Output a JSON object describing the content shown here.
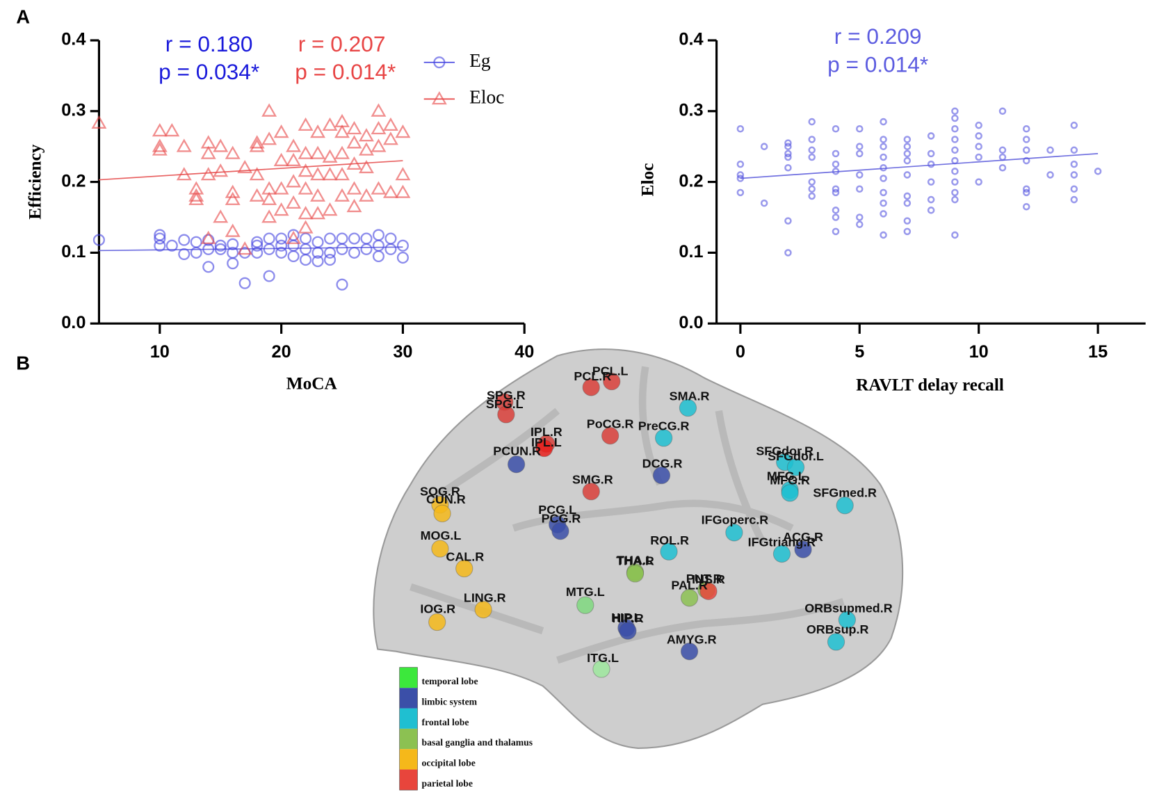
{
  "panels": [
    "A",
    "B"
  ],
  "chart_data": [
    {
      "type": "scatter",
      "xlabel": "MoCA",
      "ylabel": "Efficiency",
      "xlim": [
        5,
        40
      ],
      "xticks": [
        10,
        20,
        30,
        40
      ],
      "ylim": [
        0,
        0.4
      ],
      "yticks": [
        {
          "value": 0,
          "label": "0.0"
        },
        0.1,
        0.2,
        0.3,
        0.4
      ],
      "annotations": [
        {
          "text": "r = 0.180",
          "color": "#1a1adb"
        },
        {
          "text": "p = 0.034*",
          "color": "#1a1adb"
        },
        {
          "text": "r = 0.207",
          "color": "#e84545"
        },
        {
          "text": "p = 0.014*",
          "color": "#e84545"
        }
      ],
      "series": [
        {
          "name": "Eg",
          "color": "#4040e0",
          "marker": "circle",
          "x": [
            5,
            10,
            10,
            10,
            11,
            12,
            12,
            13,
            13,
            14,
            14,
            14,
            15,
            15,
            16,
            16,
            16,
            17,
            17,
            18,
            18,
            18,
            19,
            19,
            19,
            20,
            20,
            20,
            21,
            21,
            21,
            22,
            22,
            22,
            23,
            23,
            23,
            24,
            24,
            24,
            25,
            25,
            25,
            26,
            26,
            27,
            27,
            28,
            28,
            28,
            29,
            29,
            30,
            30
          ],
          "values": [
            0.118,
            0.125,
            0.12,
            0.11,
            0.11,
            0.118,
            0.098,
            0.115,
            0.1,
            0.118,
            0.105,
            0.08,
            0.11,
            0.105,
            0.112,
            0.1,
            0.085,
            0.1,
            0.057,
            0.115,
            0.11,
            0.1,
            0.12,
            0.105,
            0.067,
            0.12,
            0.11,
            0.1,
            0.125,
            0.11,
            0.095,
            0.12,
            0.105,
            0.09,
            0.115,
            0.1,
            0.088,
            0.12,
            0.1,
            0.09,
            0.12,
            0.105,
            0.055,
            0.12,
            0.1,
            0.12,
            0.105,
            0.125,
            0.11,
            0.095,
            0.12,
            0.105,
            0.11,
            0.093
          ]
        },
        {
          "name": "Eloc",
          "color": "#e84545",
          "marker": "triangle",
          "x": [
            5,
            10,
            10,
            10,
            11,
            12,
            12,
            13,
            13,
            13,
            14,
            14,
            14,
            14,
            15,
            15,
            15,
            16,
            16,
            16,
            16,
            17,
            17,
            18,
            18,
            18,
            18,
            19,
            19,
            19,
            19,
            19,
            20,
            20,
            20,
            20,
            21,
            21,
            21,
            21,
            21,
            22,
            22,
            22,
            22,
            22,
            22,
            23,
            23,
            23,
            23,
            23,
            24,
            24,
            24,
            24,
            25,
            25,
            25,
            25,
            25,
            26,
            26,
            26,
            26,
            26,
            27,
            27,
            27,
            27,
            28,
            28,
            28,
            28,
            29,
            29,
            29,
            30,
            30,
            30
          ],
          "values": [
            0.283,
            0.272,
            0.25,
            0.245,
            0.272,
            0.25,
            0.21,
            0.19,
            0.18,
            0.175,
            0.255,
            0.24,
            0.21,
            0.12,
            0.25,
            0.215,
            0.15,
            0.24,
            0.185,
            0.175,
            0.13,
            0.22,
            0.105,
            0.255,
            0.25,
            0.21,
            0.18,
            0.3,
            0.26,
            0.19,
            0.175,
            0.15,
            0.27,
            0.23,
            0.19,
            0.16,
            0.25,
            0.23,
            0.2,
            0.17,
            0.12,
            0.28,
            0.24,
            0.215,
            0.19,
            0.155,
            0.135,
            0.27,
            0.24,
            0.21,
            0.18,
            0.155,
            0.28,
            0.235,
            0.21,
            0.16,
            0.285,
            0.27,
            0.24,
            0.21,
            0.18,
            0.275,
            0.255,
            0.225,
            0.19,
            0.165,
            0.265,
            0.245,
            0.22,
            0.18,
            0.3,
            0.275,
            0.25,
            0.19,
            0.28,
            0.26,
            0.185,
            0.27,
            0.21,
            0.185
          ]
        }
      ],
      "trendlines": [
        {
          "color": "#7070e0",
          "x": [
            5,
            30
          ],
          "values": [
            0.103,
            0.108
          ]
        },
        {
          "color": "#e86060",
          "x": [
            5,
            30
          ],
          "values": [
            0.203,
            0.23
          ]
        }
      ]
    },
    {
      "type": "scatter",
      "xlabel": "RAVLT delay recall",
      "ylabel": "Eloc",
      "xlim": [
        -1,
        17
      ],
      "xticks": [
        0,
        5,
        10,
        15
      ],
      "ylim": [
        0,
        0.4
      ],
      "yticks": [
        {
          "value": 0,
          "label": "0.0"
        },
        0.1,
        0.2,
        0.3,
        0.4
      ],
      "annotations": [
        {
          "text": "r = 0.209",
          "color": "#5c5ce0"
        },
        {
          "text": "p = 0.014*",
          "color": "#5c5ce0"
        }
      ],
      "series": [
        {
          "name": "Eloc",
          "color": "#5555e0",
          "marker": "circle",
          "x": [
            0,
            0,
            0,
            0,
            0,
            1,
            1,
            2,
            2,
            2,
            2,
            2,
            2,
            2,
            3,
            3,
            3,
            3,
            3,
            3,
            3,
            4,
            4,
            4,
            4,
            4,
            4,
            4,
            4,
            4,
            5,
            5,
            5,
            5,
            5,
            5,
            5,
            6,
            6,
            6,
            6,
            6,
            6,
            6,
            6,
            6,
            6,
            7,
            7,
            7,
            7,
            7,
            7,
            7,
            7,
            7,
            8,
            8,
            8,
            8,
            8,
            8,
            9,
            9,
            9,
            9,
            9,
            9,
            9,
            9,
            9,
            9,
            9,
            10,
            10,
            10,
            10,
            10,
            11,
            11,
            11,
            11,
            12,
            12,
            12,
            12,
            12,
            12,
            12,
            13,
            13,
            14,
            14,
            14,
            14,
            14,
            14,
            15
          ],
          "values": [
            0.275,
            0.225,
            0.21,
            0.205,
            0.185,
            0.25,
            0.17,
            0.255,
            0.25,
            0.24,
            0.235,
            0.22,
            0.145,
            0.1,
            0.285,
            0.26,
            0.245,
            0.235,
            0.2,
            0.19,
            0.18,
            0.275,
            0.24,
            0.225,
            0.215,
            0.19,
            0.185,
            0.16,
            0.15,
            0.13,
            0.275,
            0.25,
            0.24,
            0.21,
            0.19,
            0.15,
            0.14,
            0.285,
            0.26,
            0.25,
            0.235,
            0.22,
            0.205,
            0.185,
            0.17,
            0.155,
            0.125,
            0.26,
            0.25,
            0.24,
            0.23,
            0.21,
            0.18,
            0.17,
            0.145,
            0.13,
            0.265,
            0.24,
            0.225,
            0.2,
            0.175,
            0.16,
            0.3,
            0.29,
            0.275,
            0.26,
            0.245,
            0.23,
            0.215,
            0.2,
            0.185,
            0.175,
            0.125,
            0.28,
            0.265,
            0.25,
            0.235,
            0.2,
            0.3,
            0.245,
            0.235,
            0.22,
            0.275,
            0.26,
            0.245,
            0.23,
            0.19,
            0.185,
            0.165,
            0.245,
            0.21,
            0.28,
            0.245,
            0.225,
            0.21,
            0.19,
            0.175,
            0.215
          ]
        }
      ],
      "trendlines": [
        {
          "color": "#7070e0",
          "x": [
            0,
            15
          ],
          "values": [
            0.205,
            0.24
          ]
        }
      ]
    }
  ],
  "brain": {
    "legend": [
      {
        "label": "temporal lobe",
        "color": "#3ce83c"
      },
      {
        "label": "limbic system",
        "color": "#3b4fa8"
      },
      {
        "label": "frontal lobe",
        "color": "#1fbfd1"
      },
      {
        "label": "basal ganglia and thalamus",
        "color": "#8cc152"
      },
      {
        "label": "occipital lobe",
        "color": "#f5b81a"
      },
      {
        "label": "parietal lobe",
        "color": "#e8453c"
      }
    ],
    "nodes": [
      {
        "label": "SPG.R",
        "color": "#d9403a"
      },
      {
        "label": "SPG.L",
        "color": "#d9403a"
      },
      {
        "label": "PCL.R",
        "color": "#d9403a"
      },
      {
        "label": "PCL.L",
        "color": "#d9403a"
      },
      {
        "label": "SMA.R",
        "color": "#1fbfd1"
      },
      {
        "label": "PoCG.R",
        "color": "#d9403a"
      },
      {
        "label": "PreCG.R",
        "color": "#1fbfd1"
      },
      {
        "label": "IPL.R",
        "color": "#d9403a"
      },
      {
        "label": "IPL.L",
        "color": "#e8201c"
      },
      {
        "label": "PCUN.R",
        "color": "#3b4fa8"
      },
      {
        "label": "DCG.R",
        "color": "#3b4fa8"
      },
      {
        "label": "SFGdor.R",
        "color": "#1fbfd1"
      },
      {
        "label": "SFGdor.L",
        "color": "#1fbfd1"
      },
      {
        "label": "MFG.L",
        "color": "#1fbfd1"
      },
      {
        "label": "MFG.R",
        "color": "#1fbfd1"
      },
      {
        "label": "SFGmed.R",
        "color": "#1fbfd1"
      },
      {
        "label": "SMG.R",
        "color": "#d9403a"
      },
      {
        "label": "SOG.R",
        "color": "#f5b81a"
      },
      {
        "label": "CUN.R",
        "color": "#f5b81a"
      },
      {
        "label": "PCG.L",
        "color": "#3b4fa8"
      },
      {
        "label": "PCG.R",
        "color": "#3b4fa8"
      },
      {
        "label": "IFGoperc.R",
        "color": "#1fbfd1"
      },
      {
        "label": "ACG.R",
        "color": "#3b4fa8"
      },
      {
        "label": "IFGtriang.R",
        "color": "#1fbfd1"
      },
      {
        "label": "ROL.R",
        "color": "#1fbfd1"
      },
      {
        "label": "MOG.L",
        "color": "#f5b81a"
      },
      {
        "label": "CAL.R",
        "color": "#f5b81a"
      },
      {
        "label": "THA.L",
        "color": "#8cc152"
      },
      {
        "label": "THA.R",
        "color": "#8cc152"
      },
      {
        "label": "PUT.R",
        "color": "#8cc152"
      },
      {
        "label": "INS.R",
        "color": "#e8453c"
      },
      {
        "label": "PAL.R",
        "color": "#8cc152"
      },
      {
        "label": "MTG.L",
        "color": "#7fd87f"
      },
      {
        "label": "LING.R",
        "color": "#f5b81a"
      },
      {
        "label": "IOG.R",
        "color": "#f5b81a"
      },
      {
        "label": "HIP.L",
        "color": "#3b4fa8"
      },
      {
        "label": "HIP.R",
        "color": "#3b4fa8"
      },
      {
        "label": "ORBsupmed.R",
        "color": "#1fbfd1"
      },
      {
        "label": "ORBsup.R",
        "color": "#1fbfd1"
      },
      {
        "label": "AMYG.R",
        "color": "#3b4fa8"
      },
      {
        "label": "ITG.L",
        "color": "#9ee89e"
      }
    ]
  }
}
